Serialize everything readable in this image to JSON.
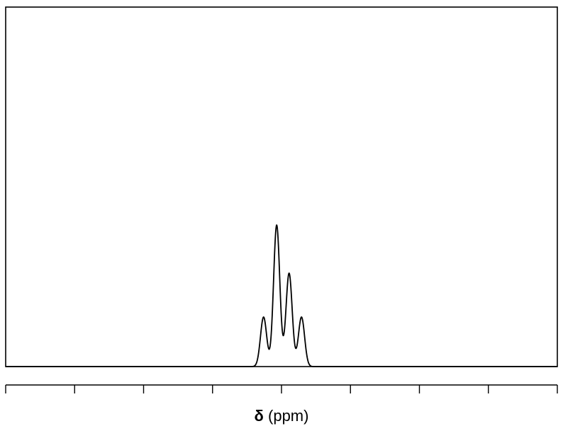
{
  "chart_data": {
    "type": "line",
    "title": "",
    "xlabel_symbol": "δ",
    "xlabel_unit": " (ppm)",
    "grid": false,
    "legend": "none",
    "xlim": [
      0,
      8
    ],
    "ylim": [
      0,
      1
    ],
    "x_ticks": [
      0,
      1,
      2,
      3,
      4,
      5,
      6,
      7,
      8
    ],
    "peaks": [
      {
        "x": 3.74,
        "y": 0.35,
        "width": 0.045
      },
      {
        "x": 3.93,
        "y": 1.0,
        "width": 0.045
      },
      {
        "x": 4.11,
        "y": 0.66,
        "width": 0.045
      },
      {
        "x": 4.29,
        "y": 0.35,
        "width": 0.045
      }
    ],
    "line_color": "#000000"
  }
}
